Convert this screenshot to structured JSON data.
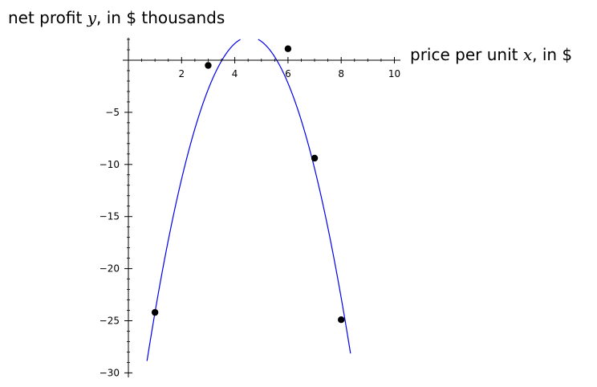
{
  "chart_data": {
    "type": "scatter",
    "xlabel_parts": [
      "price per unit ",
      "x",
      ", in $"
    ],
    "ylabel_parts": [
      "net profit ",
      "y",
      ", in $ thousands"
    ],
    "x_ticks": [
      2,
      4,
      6,
      8,
      10
    ],
    "x_tick_labels": [
      "2",
      "4",
      "6",
      "8",
      "10"
    ],
    "y_ticks": [
      -5,
      -10,
      -15,
      -20,
      -25,
      -30
    ],
    "y_tick_labels": [
      "−5",
      "−10",
      "−15",
      "−20",
      "−25",
      "−30"
    ],
    "xlim": [
      0,
      10.2
    ],
    "ylim": [
      -30.3,
      2
    ],
    "grid": false,
    "points": {
      "x": [
        1,
        3,
        6,
        7,
        8
      ],
      "y": [
        -24.2,
        -0.5,
        1.1,
        -9.4,
        -24.9
      ],
      "color": "#000000"
    },
    "curve": {
      "type": "quadratic",
      "a": -2.1,
      "b": 19.1,
      "c": -41.2,
      "x_range": [
        0.7,
        8.35
      ],
      "color": "#0000ee"
    }
  }
}
